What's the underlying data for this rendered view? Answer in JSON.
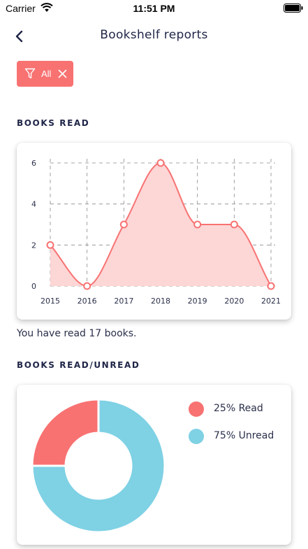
{
  "status_bar": {
    "carrier": "Carrier",
    "time": "11:51 PM"
  },
  "header": {
    "title": "Bookshelf reports"
  },
  "filter": {
    "label": "All"
  },
  "sections": {
    "books_read": "BOOKS READ",
    "books_read_unread": "BOOKS READ/UNREAD"
  },
  "summary": "You have read 17 books.",
  "colors": {
    "accent": "#f87272",
    "area_fill": "#fdd6d6",
    "unread": "#7fd1e4",
    "text": "#1f2547"
  },
  "chart_data": [
    {
      "type": "area",
      "x": [
        "2015",
        "2016",
        "2017",
        "2018",
        "2019",
        "2020",
        "2021"
      ],
      "values": [
        2,
        0,
        3,
        6,
        3,
        3,
        0
      ],
      "yticks": [
        "0",
        "2",
        "4",
        "6"
      ],
      "ylim": [
        0,
        6
      ],
      "grid": true
    },
    {
      "type": "pie",
      "slices": [
        {
          "label": "25% Read",
          "value": 25,
          "color": "#f87272"
        },
        {
          "label": "75% Unread",
          "value": 75,
          "color": "#7fd1e4"
        }
      ]
    }
  ]
}
